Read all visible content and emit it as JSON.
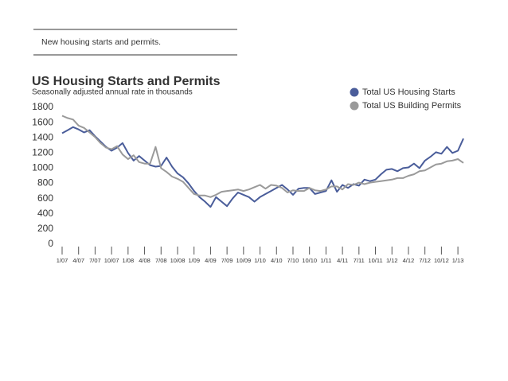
{
  "caption": "New housing starts and permits.",
  "chart_data": {
    "type": "line",
    "title": "US Housing Starts and Permits",
    "subtitle": "Seasonally adjusted annual rate in thousands",
    "categories": [
      "1/07",
      null,
      null,
      "4/07",
      null,
      null,
      "7/07",
      null,
      null,
      "10/07",
      null,
      null,
      "1/08",
      null,
      null,
      "4/08",
      null,
      null,
      "7/08",
      null,
      null,
      "10/08",
      null,
      null,
      "1/09",
      null,
      null,
      "4/09",
      null,
      null,
      "7/09",
      null,
      null,
      "10/09",
      null,
      null,
      "1/10",
      null,
      null,
      "4/10",
      null,
      null,
      "7/10",
      null,
      null,
      "10/10",
      null,
      null,
      "1/11",
      null,
      null,
      "4/11",
      null,
      null,
      "7/11",
      null,
      null,
      "10/11",
      null,
      null,
      "1/12",
      null,
      null,
      "4/12",
      null,
      null,
      "7/12",
      null,
      null,
      "10/12",
      null,
      null,
      "1/13",
      null
    ],
    "series": [
      {
        "name": "Total US Housing Starts",
        "color": "#4a5d9a",
        "values": [
          1460,
          1500,
          1540,
          1510,
          1470,
          1500,
          1420,
          1350,
          1280,
          1230,
          1270,
          1330,
          1200,
          1100,
          1160,
          1100,
          1040,
          1020,
          1030,
          1140,
          1020,
          930,
          880,
          800,
          700,
          620,
          560,
          490,
          620,
          560,
          500,
          600,
          680,
          650,
          620,
          560,
          620,
          660,
          700,
          740,
          780,
          720,
          650,
          730,
          740,
          740,
          660,
          680,
          700,
          840,
          690,
          780,
          740,
          790,
          770,
          850,
          830,
          850,
          920,
          980,
          990,
          960,
          1000,
          1010,
          1060,
          1000,
          1100,
          1150,
          1210,
          1190,
          1280,
          1200,
          1230,
          1390
        ]
      },
      {
        "name": "Total US Building Permits",
        "color": "#9a9a9a",
        "values": [
          1690,
          1660,
          1640,
          1560,
          1530,
          1470,
          1410,
          1330,
          1270,
          1250,
          1290,
          1180,
          1120,
          1170,
          1080,
          1060,
          1060,
          1280,
          1000,
          950,
          890,
          860,
          820,
          740,
          660,
          640,
          640,
          620,
          650,
          690,
          700,
          710,
          720,
          700,
          720,
          750,
          780,
          730,
          780,
          770,
          740,
          680,
          710,
          700,
          700,
          740,
          710,
          700,
          720,
          760,
          760,
          720,
          790,
          780,
          810,
          790,
          810,
          820,
          830,
          840,
          850,
          870,
          870,
          900,
          920,
          960,
          970,
          1010,
          1050,
          1060,
          1090,
          1100,
          1120,
          1070
        ]
      }
    ],
    "ylim": [
      0,
      1800
    ],
    "yticks": [
      0,
      200,
      400,
      600,
      800,
      1000,
      1200,
      1400,
      1600,
      1800
    ],
    "grid": false,
    "legend": "top-right"
  }
}
